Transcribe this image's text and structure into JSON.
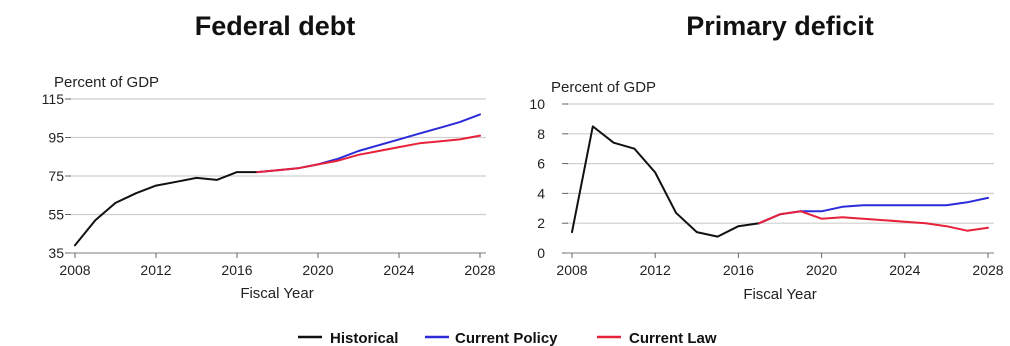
{
  "colors": {
    "historical": "#111111",
    "current_policy": "#2b2bd9",
    "current_law": "#e8213a",
    "grid": "#cfcfcf"
  },
  "legend": [
    {
      "label": "Historical",
      "color_key": "historical"
    },
    {
      "label": "Current Policy",
      "color_key": "current_policy"
    },
    {
      "label": "Current Law",
      "color_key": "current_law"
    }
  ],
  "chart_data": [
    {
      "type": "line",
      "title": "Federal debt",
      "ylabel": "Percent of GDP",
      "xlabel": "Fiscal Year",
      "xlim": [
        2008,
        2028
      ],
      "ylim": [
        35,
        115
      ],
      "xticks": [
        2008,
        2012,
        2016,
        2020,
        2024,
        2028
      ],
      "yticks": [
        35,
        55,
        75,
        95,
        115
      ],
      "grid": true,
      "series": [
        {
          "name": "Historical",
          "color_key": "historical",
          "x": [
            2008,
            2009,
            2010,
            2011,
            2012,
            2013,
            2014,
            2015,
            2016,
            2017
          ],
          "y": [
            39,
            52,
            61,
            66,
            70,
            72,
            74,
            73,
            77,
            77
          ]
        },
        {
          "name": "Current Policy",
          "color_key": "current_policy",
          "x": [
            2017,
            2018,
            2019,
            2020,
            2021,
            2022,
            2023,
            2024,
            2025,
            2026,
            2027,
            2028
          ],
          "y": [
            77,
            78,
            79,
            81,
            84,
            88,
            91,
            94,
            97,
            100,
            103,
            107
          ]
        },
        {
          "name": "Current Law",
          "color_key": "current_law",
          "x": [
            2017,
            2018,
            2019,
            2020,
            2021,
            2022,
            2023,
            2024,
            2025,
            2026,
            2027,
            2028
          ],
          "y": [
            77,
            78,
            79,
            81,
            83,
            86,
            88,
            90,
            92,
            93,
            94,
            96
          ]
        }
      ]
    },
    {
      "type": "line",
      "title": "Primary deficit",
      "ylabel": "Percent of GDP",
      "xlabel": "Fiscal Year",
      "xlim": [
        2008,
        2028
      ],
      "ylim": [
        0,
        10
      ],
      "xticks": [
        2008,
        2012,
        2016,
        2020,
        2024,
        2028
      ],
      "yticks": [
        0,
        2,
        4,
        6,
        8,
        10
      ],
      "grid": true,
      "series": [
        {
          "name": "Historical",
          "color_key": "historical",
          "x": [
            2008,
            2009,
            2010,
            2011,
            2012,
            2013,
            2014,
            2015,
            2016,
            2017
          ],
          "y": [
            1.4,
            8.5,
            7.4,
            7.0,
            5.4,
            2.7,
            1.4,
            1.1,
            1.8,
            2.0
          ]
        },
        {
          "name": "Current Policy",
          "color_key": "current_policy",
          "x": [
            2017,
            2018,
            2019,
            2020,
            2021,
            2022,
            2023,
            2024,
            2025,
            2026,
            2027,
            2028
          ],
          "y": [
            2.0,
            2.6,
            2.8,
            2.8,
            3.1,
            3.2,
            3.2,
            3.2,
            3.2,
            3.2,
            3.4,
            3.7
          ]
        },
        {
          "name": "Current Law",
          "color_key": "current_law",
          "x": [
            2017,
            2018,
            2019,
            2020,
            2021,
            2022,
            2023,
            2024,
            2025,
            2026,
            2027,
            2028
          ],
          "y": [
            2.0,
            2.6,
            2.8,
            2.3,
            2.4,
            2.3,
            2.2,
            2.1,
            2.0,
            1.8,
            1.5,
            1.7
          ]
        }
      ]
    }
  ]
}
